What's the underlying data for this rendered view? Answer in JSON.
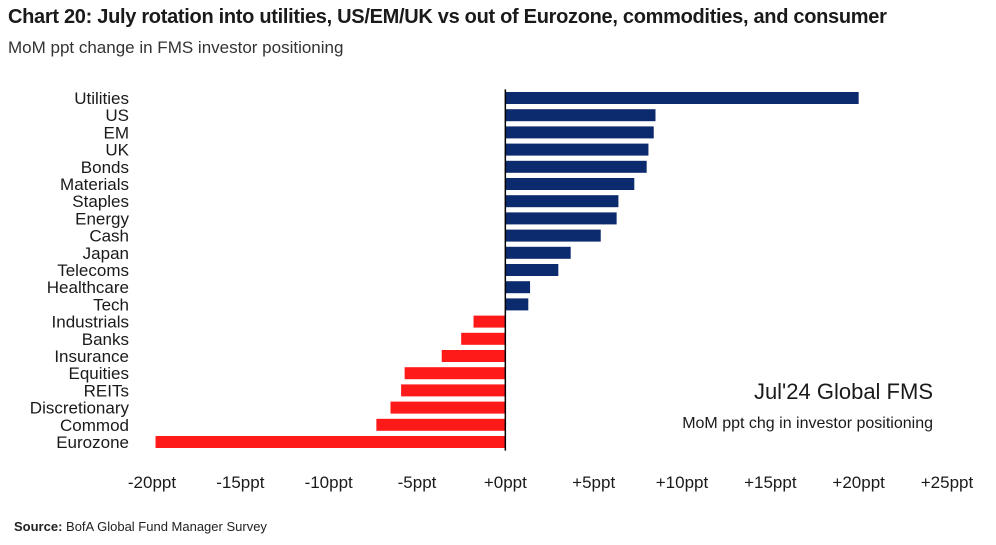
{
  "header": {
    "title": "Chart 20: July rotation into utilities, US/EM/UK vs out of Eurozone, commodities, and consumer",
    "subtitle": "MoM ppt change in FMS investor positioning"
  },
  "annotation": {
    "main": "Jul'24 Global FMS",
    "sub": "MoM ppt chg in investor positioning"
  },
  "source": {
    "label": "Source:",
    "text": "BofA Global Fund Manager Survey"
  },
  "colors": {
    "positive": "#0c2a6e",
    "negative": "#ff1a1a",
    "axis": "#000000"
  },
  "chart_data": {
    "type": "bar",
    "orientation": "horizontal",
    "categories": [
      "Utilities",
      "US",
      "EM",
      "UK",
      "Bonds",
      "Materials",
      "Staples",
      "Energy",
      "Cash",
      "Japan",
      "Telecoms",
      "Healthcare",
      "Tech",
      "Industrials",
      "Banks",
      "Insurance",
      "Equities",
      "REITs",
      "Discretionary",
      "Commod",
      "Eurozone"
    ],
    "values": [
      20,
      8.5,
      8.4,
      8.1,
      8.0,
      7.3,
      6.4,
      6.3,
      5.4,
      3.7,
      3.0,
      1.4,
      1.3,
      -1.8,
      -2.5,
      -3.6,
      -5.7,
      -5.9,
      -6.5,
      -7.3,
      -19.8
    ],
    "xlim": [
      -20,
      25
    ],
    "xticks": [
      -20,
      -15,
      -10,
      -5,
      0,
      5,
      10,
      15,
      20,
      25
    ],
    "xtick_labels": [
      "-20ppt",
      "-15ppt",
      "-10ppt",
      "-5ppt",
      "+0ppt",
      "+5ppt",
      "+10ppt",
      "+15ppt",
      "+20ppt",
      "+25ppt"
    ],
    "grid": false,
    "legend": "none"
  }
}
